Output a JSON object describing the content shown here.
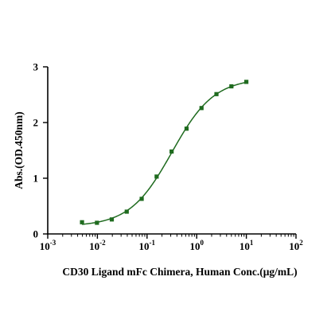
{
  "chart_data": {
    "type": "scatter",
    "xlabel": "CD30 Ligand mFc Chimera, Human Conc.(μg/mL)",
    "ylabel": "Abs.(OD.450nm)",
    "x_scale": "log",
    "xlim": [
      0.001,
      100
    ],
    "ylim": [
      0,
      3
    ],
    "x_ticks": [
      {
        "base": "10",
        "exp": "-3",
        "value": 0.001
      },
      {
        "base": "10",
        "exp": "-2",
        "value": 0.01
      },
      {
        "base": "10",
        "exp": "-1",
        "value": 0.1
      },
      {
        "base": "10",
        "exp": "0",
        "value": 1
      },
      {
        "base": "10",
        "exp": "1",
        "value": 10
      },
      {
        "base": "10",
        "exp": "2",
        "value": 100
      }
    ],
    "y_ticks": [
      "0",
      "1",
      "2",
      "3"
    ],
    "grid": false,
    "legend": "none",
    "series": [
      {
        "color": "#1f6b1f",
        "points": [
          {
            "x": 0.0049,
            "y": 0.21
          },
          {
            "x": 0.0098,
            "y": 0.2
          },
          {
            "x": 0.0195,
            "y": 0.26
          },
          {
            "x": 0.039,
            "y": 0.4
          },
          {
            "x": 0.078,
            "y": 0.63
          },
          {
            "x": 0.156,
            "y": 1.03
          },
          {
            "x": 0.3125,
            "y": 1.48
          },
          {
            "x": 0.625,
            "y": 1.89
          },
          {
            "x": 1.25,
            "y": 2.26
          },
          {
            "x": 2.5,
            "y": 2.51
          },
          {
            "x": 5,
            "y": 2.65
          },
          {
            "x": 10,
            "y": 2.73
          }
        ],
        "fit": "4PL"
      }
    ]
  }
}
